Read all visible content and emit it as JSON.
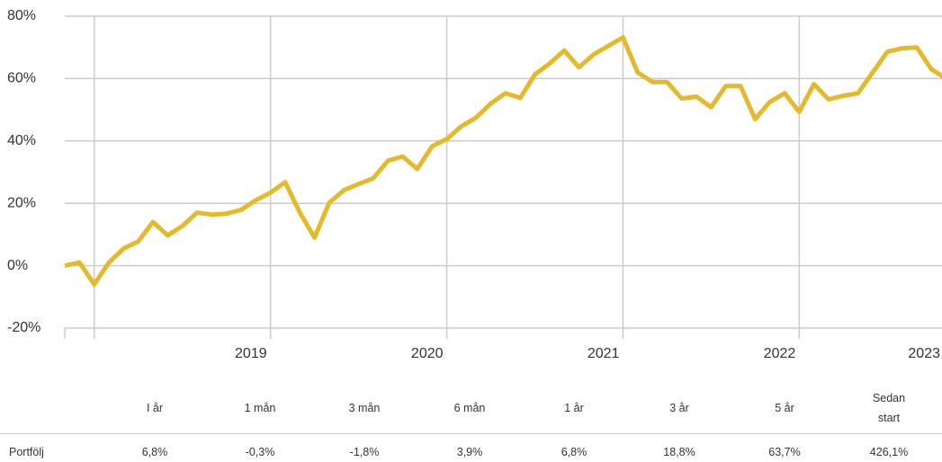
{
  "chart_data": {
    "type": "line",
    "x": [
      2017.833,
      2017.917,
      2018.0,
      2018.083,
      2018.167,
      2018.25,
      2018.333,
      2018.417,
      2018.5,
      2018.583,
      2018.667,
      2018.75,
      2018.833,
      2018.917,
      2019.0,
      2019.083,
      2019.167,
      2019.25,
      2019.333,
      2019.417,
      2019.5,
      2019.583,
      2019.667,
      2019.75,
      2019.833,
      2019.917,
      2020.0,
      2020.083,
      2020.167,
      2020.25,
      2020.333,
      2020.417,
      2020.5,
      2020.583,
      2020.667,
      2020.75,
      2020.833,
      2020.917,
      2021.0,
      2021.083,
      2021.167,
      2021.25,
      2021.333,
      2021.417,
      2021.5,
      2021.583,
      2021.667,
      2021.75,
      2021.833,
      2021.917,
      2022.0,
      2022.083,
      2022.167,
      2022.25,
      2022.333,
      2022.417,
      2022.5,
      2022.583,
      2022.667,
      2022.75,
      2022.833
    ],
    "series": [
      {
        "name": "Portfölj",
        "color": "#e5b92c",
        "values": [
          0,
          1,
          -6,
          1,
          5.5,
          7.8,
          14,
          9.7,
          12.7,
          17,
          16.4,
          16.7,
          17.9,
          21,
          23.4,
          26.8,
          17,
          9,
          20.2,
          24.2,
          26.2,
          28,
          33.7,
          35,
          31,
          38.3,
          40.6,
          44.7,
          47.5,
          52,
          55.3,
          53.8,
          61.3,
          64.8,
          69,
          63.6,
          67.7,
          70.5,
          73.2,
          62,
          58.9,
          58.9,
          53.6,
          54.2,
          50.8,
          57.6,
          57.6,
          47,
          52.5,
          55.3,
          49.3,
          58.2,
          53.3,
          54.5,
          55.3,
          62,
          68.6,
          69.7,
          70,
          63,
          60
        ]
      }
    ],
    "xlim": [
      2017.833,
      2022.81
    ],
    "xticks": [
      2019,
      2020,
      2021,
      2022,
      2023
    ],
    "xgrid": [
      2018,
      2019,
      2020,
      2021,
      2022
    ],
    "ylim": [
      -20,
      80
    ],
    "yticks": [
      {
        "value": -20,
        "label": "-20%"
      },
      {
        "value": 0,
        "label": "0%"
      },
      {
        "value": 20,
        "label": "20%"
      },
      {
        "value": 40,
        "label": "40%"
      },
      {
        "value": 60,
        "label": "60%"
      },
      {
        "value": 80,
        "label": "80%"
      }
    ],
    "grid": true
  },
  "table": {
    "header": [
      "I år",
      "1 mån",
      "3 mån",
      "6 mån",
      "1 år",
      "3 år",
      "5 år",
      "Sedan start"
    ],
    "rows": [
      {
        "label": "Portfölj",
        "cells": [
          "6,8%",
          "-0,3%",
          "-1,8%",
          "3,9%",
          "6,8%",
          "18,8%",
          "63,7%",
          "426,1%"
        ]
      }
    ]
  }
}
